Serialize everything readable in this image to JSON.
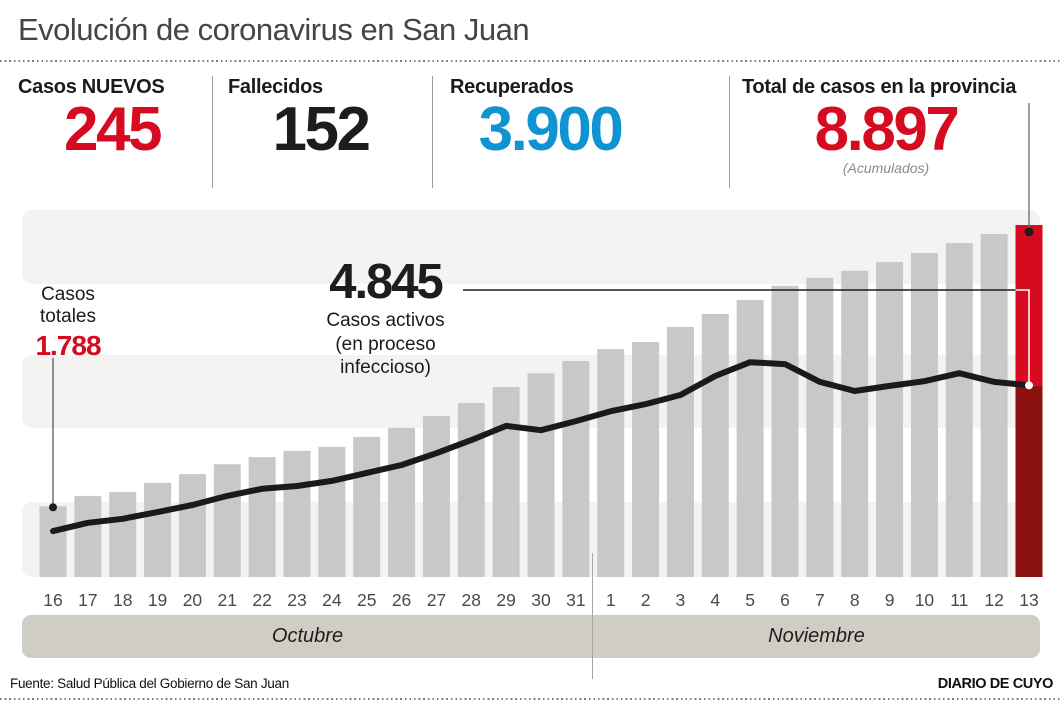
{
  "title": "Evolución de coronavirus en San Juan",
  "stats": [
    {
      "label": "Casos NUEVOS",
      "value": "245",
      "color": "#d60b20"
    },
    {
      "label": "Fallecidos",
      "value": "152",
      "color": "#1d1d1b"
    },
    {
      "label": "Recuperados",
      "value": "3.900",
      "color": "#0f93d2"
    },
    {
      "label": "Total de casos en la provincia",
      "value": "8.897",
      "color": "#d60b20",
      "note": "(Acumulados)"
    }
  ],
  "annotations": {
    "first_bar": {
      "line1": "Casos",
      "line2": "totales",
      "value": "1.788"
    },
    "active": {
      "value": "4.845",
      "line1": "Casos activos",
      "line2": "(en proceso",
      "line3": "infeccioso)"
    }
  },
  "chart_data": {
    "type": "bar+line",
    "title": "Evolución de coronavirus en San Juan",
    "categories": [
      "16",
      "17",
      "18",
      "19",
      "20",
      "21",
      "22",
      "23",
      "24",
      "25",
      "26",
      "27",
      "28",
      "29",
      "30",
      "31",
      "1",
      "2",
      "3",
      "4",
      "5",
      "6",
      "7",
      "8",
      "9",
      "10",
      "11",
      "12",
      "13"
    ],
    "months": [
      {
        "label": "Octubre",
        "from": "16",
        "to": "31"
      },
      {
        "label": "Noviembre",
        "from": "1",
        "to": "13"
      }
    ],
    "series": [
      {
        "name": "Casos totales (acumulados)",
        "type": "bar",
        "values": [
          1788,
          2050,
          2150,
          2380,
          2600,
          2850,
          3030,
          3190,
          3290,
          3540,
          3770,
          4070,
          4400,
          4800,
          5150,
          5460,
          5760,
          5940,
          6320,
          6650,
          7000,
          7360,
          7560,
          7740,
          7960,
          8190,
          8440,
          8670,
          8897
        ]
      },
      {
        "name": "Casos activos (en proceso infeccioso)",
        "type": "line",
        "values": [
          1160,
          1370,
          1470,
          1640,
          1820,
          2050,
          2230,
          2300,
          2430,
          2630,
          2830,
          3130,
          3460,
          3820,
          3710,
          3940,
          4190,
          4370,
          4600,
          5080,
          5430,
          5380,
          4930,
          4700,
          4830,
          4950,
          5150,
          4930,
          4845
        ]
      }
    ],
    "ylim": [
      0,
      8897
    ],
    "grid": "horizontal-stripes",
    "legend": "none",
    "highlight_last_category": "13",
    "labeled_points": {
      "first_total": 1788,
      "last_total": 8897,
      "last_active": 4845
    }
  },
  "footer": {
    "source": "Fuente: Salud Pública del Gobierno de San Juan",
    "credit": "DIARIO DE CUYO"
  },
  "colors": {
    "accent_red": "#d60b20",
    "dark_red": "#8c120f",
    "blue": "#0f93d2",
    "number_black": "#1d1d1b",
    "bar_gray": "#c8c8c8",
    "stripe_gray": "#f3f3f1",
    "month_band": "#d0cdc5",
    "line_black": "#1a1a19",
    "tick_gray": "#4a4a4a",
    "leader_gray": "#6d6d6d"
  }
}
